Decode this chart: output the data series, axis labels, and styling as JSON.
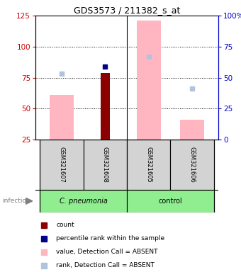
{
  "title": "GDS3573 / 211382_s_at",
  "samples": [
    "GSM321607",
    "GSM321608",
    "GSM321605",
    "GSM321606"
  ],
  "bar_bottom": 25,
  "ylim_left": [
    25,
    125
  ],
  "ylim_right": [
    0,
    100
  ],
  "yticks_left": [
    25,
    50,
    75,
    100,
    125
  ],
  "yticks_right": [
    0,
    25,
    50,
    75,
    100
  ],
  "ytick_labels_right": [
    "0",
    "25",
    "50",
    "75",
    "100%"
  ],
  "gridlines": [
    50,
    75,
    100
  ],
  "count_values": [
    null,
    79,
    null,
    null
  ],
  "count_color": "#8b0000",
  "value_absent_bars": [
    61,
    null,
    121,
    41
  ],
  "value_absent_color": "#ffb6c1",
  "percentile_rank_values": [
    null,
    84,
    null,
    null
  ],
  "percentile_rank_color": "#00008b",
  "rank_absent_values": [
    78,
    null,
    92,
    66
  ],
  "rank_absent_color": "#b0c4de",
  "x_positions": [
    0,
    1,
    2,
    3
  ],
  "infection_label": "infection",
  "left_axis_color": "#cc0000",
  "right_axis_color": "#0000cc",
  "legend_items": [
    {
      "color": "#8b0000",
      "label": "count"
    },
    {
      "color": "#00008b",
      "label": "percentile rank within the sample"
    },
    {
      "color": "#ffb6c1",
      "label": "value, Detection Call = ABSENT"
    },
    {
      "color": "#b0c4de",
      "label": "rank, Detection Call = ABSENT"
    }
  ],
  "figure_bg": "#ffffff",
  "sample_bg": "#d3d3d3",
  "cpneumonia_bg": "#90ee90",
  "control_bg": "#90ee90"
}
